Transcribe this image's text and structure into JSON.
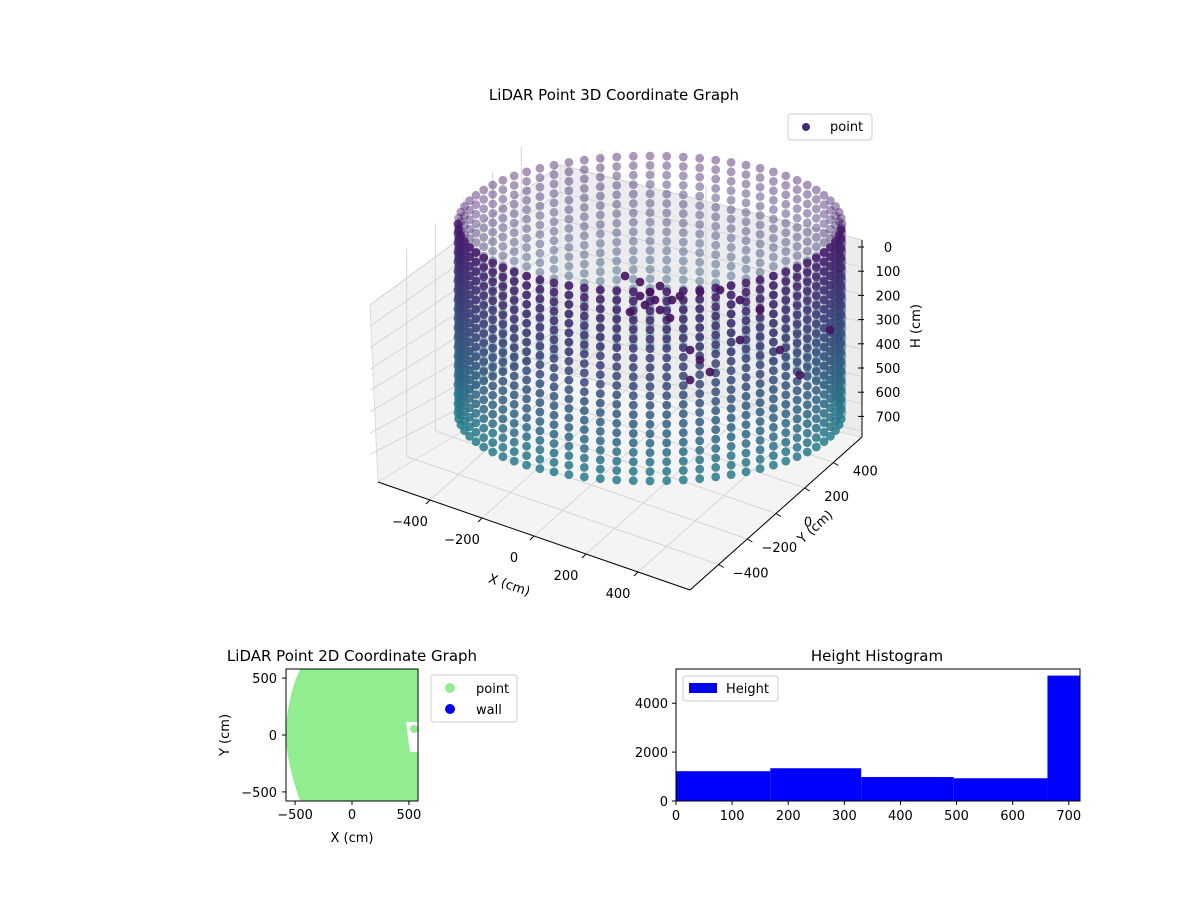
{
  "chart_data": [
    {
      "type": "scatter",
      "title": "LiDAR Point 3D Coordinate Graph",
      "xlabel": "X (cm)",
      "ylabel": "Y (cm)",
      "zlabel": "H (cm)",
      "legend": {
        "entries": [
          "point"
        ],
        "placement": "top-right"
      },
      "x_ticks": [
        "−400",
        "−200",
        "0",
        "200",
        "400"
      ],
      "y_ticks": [
        "−400",
        "−200",
        "0",
        "200",
        "400"
      ],
      "z_ticks": [
        "0",
        "100",
        "200",
        "300",
        "400",
        "500",
        "600",
        "700"
      ],
      "xlim": [
        -600,
        600
      ],
      "ylim": [
        -600,
        600
      ],
      "zlim": [
        0,
        720
      ],
      "z_axis_inverted": true,
      "colormap": "viridis (purple at H=0, teal at H=700)",
      "series": [
        {
          "name": "point",
          "shape": "cylindrical wall of points",
          "radius": 580,
          "h_range": [
            0,
            700
          ],
          "color": "#44287a"
        }
      ]
    },
    {
      "type": "scatter",
      "title": "LiDAR Point 2D Coordinate Graph",
      "xlabel": "X (cm)",
      "ylabel": "Y (cm)",
      "x_ticks": [
        "−500",
        "0",
        "500"
      ],
      "y_ticks": [
        "500",
        "0",
        "−500"
      ],
      "xlim": [
        -580,
        580
      ],
      "ylim": [
        -580,
        580
      ],
      "legend": {
        "entries": [
          "point",
          "wall"
        ],
        "placement": "outside-right"
      },
      "series": [
        {
          "name": "point",
          "color": "#90ee90",
          "shape": "filled disc",
          "radius": 580
        },
        {
          "name": "wall",
          "color": "#0000ff"
        }
      ]
    },
    {
      "type": "bar",
      "title": "Height Histogram",
      "legend": {
        "entries": [
          "Height"
        ],
        "placement": "top-left"
      },
      "x_ticks": [
        "0",
        "100",
        "200",
        "300",
        "400",
        "500",
        "600",
        "700"
      ],
      "y_ticks": [
        "0",
        "2000",
        "4000"
      ],
      "xlim": [
        0,
        720
      ],
      "ylim": [
        0,
        5400
      ],
      "bins": [
        {
          "from": 0,
          "to": 168,
          "count": 1220
        },
        {
          "from": 168,
          "to": 330,
          "count": 1340
        },
        {
          "from": 330,
          "to": 495,
          "count": 980
        },
        {
          "from": 495,
          "to": 662,
          "count": 930
        },
        {
          "from": 662,
          "to": 720,
          "count": 5130
        }
      ],
      "series": [
        {
          "name": "Height",
          "color": "#0000ff"
        }
      ]
    }
  ]
}
